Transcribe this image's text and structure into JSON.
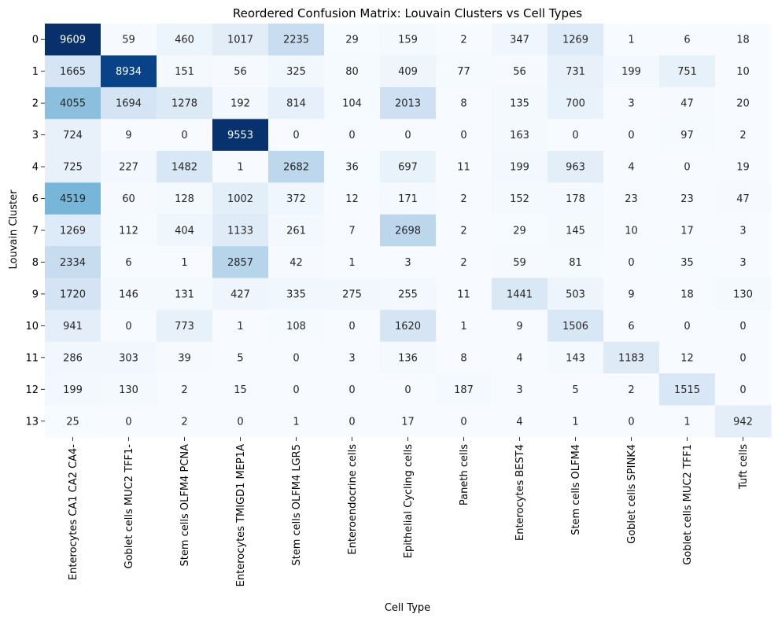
{
  "chart_data": {
    "type": "heatmap",
    "title": "Reordered Confusion Matrix: Louvain Clusters vs Cell Types",
    "xlabel": "Cell Type",
    "ylabel": "Louvain Cluster",
    "rows": [
      "0",
      "1",
      "2",
      "3",
      "4",
      "6",
      "7",
      "8",
      "9",
      "10",
      "11",
      "12",
      "13"
    ],
    "columns": [
      "Enterocytes CA1 CA2 CA4-",
      "Goblet cells MUC2 TFF1-",
      "Stem cells OLFM4 PCNA",
      "Enterocytes TMIGD1 MEP1A",
      "Stem cells OLFM4 LGR5",
      "Enteroendocrine cells",
      "Epithelial Cycling cells",
      "Paneth cells",
      "Enterocytes BEST4",
      "Stem cells OLFM4",
      "Goblet cells SPINK4",
      "Goblet cells MUC2 TFF1",
      "Tuft cells"
    ],
    "values": [
      [
        9609,
        59,
        460,
        1017,
        2235,
        29,
        159,
        2,
        347,
        1269,
        1,
        6,
        18
      ],
      [
        1665,
        8934,
        151,
        56,
        325,
        80,
        409,
        77,
        56,
        731,
        199,
        751,
        10
      ],
      [
        4055,
        1694,
        1278,
        192,
        814,
        104,
        2013,
        8,
        135,
        700,
        3,
        47,
        20
      ],
      [
        724,
        9,
        0,
        9553,
        0,
        0,
        0,
        0,
        163,
        0,
        0,
        97,
        2
      ],
      [
        725,
        227,
        1482,
        1,
        2682,
        36,
        697,
        11,
        199,
        963,
        4,
        0,
        19
      ],
      [
        4519,
        60,
        128,
        1002,
        372,
        12,
        171,
        2,
        152,
        178,
        23,
        23,
        47
      ],
      [
        1269,
        112,
        404,
        1133,
        261,
        7,
        2698,
        2,
        29,
        145,
        10,
        17,
        3
      ],
      [
        2334,
        6,
        1,
        2857,
        42,
        1,
        3,
        2,
        59,
        81,
        0,
        35,
        3
      ],
      [
        1720,
        146,
        131,
        427,
        335,
        275,
        255,
        11,
        1441,
        503,
        9,
        18,
        130
      ],
      [
        941,
        0,
        773,
        1,
        108,
        0,
        1620,
        1,
        9,
        1506,
        6,
        0,
        0
      ],
      [
        286,
        303,
        39,
        5,
        0,
        3,
        136,
        8,
        4,
        143,
        1183,
        12,
        0
      ],
      [
        199,
        130,
        2,
        15,
        0,
        0,
        0,
        187,
        3,
        5,
        2,
        1515,
        0
      ],
      [
        25,
        0,
        2,
        0,
        1,
        0,
        17,
        0,
        4,
        1,
        0,
        1,
        942
      ]
    ],
    "colormap": "Blues",
    "colorbar": false,
    "vmin": 0,
    "vmax": 9609
  }
}
